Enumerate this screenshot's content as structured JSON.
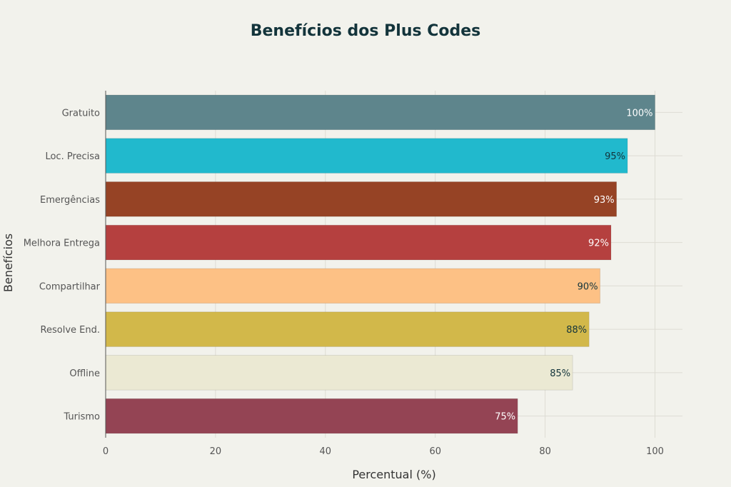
{
  "chart_data": {
    "type": "bar",
    "orientation": "horizontal",
    "title": "Benefícios dos Plus Codes",
    "xlabel": "Percentual (%)",
    "ylabel": "Benefícios",
    "xlim": [
      0,
      105
    ],
    "xticks": [
      0,
      20,
      40,
      60,
      80,
      100
    ],
    "grid": true,
    "categories": [
      "Gratuito",
      "Loc. Precisa",
      "Emergências",
      "Melhora Entrega",
      "Compartilhar",
      "Resolve End.",
      "Offline",
      "Turismo"
    ],
    "values": [
      100,
      95,
      93,
      92,
      90,
      88,
      85,
      75
    ],
    "data_labels": [
      "100%",
      "95%",
      "93%",
      "92%",
      "90%",
      "88%",
      "85%",
      "75%"
    ],
    "colors": [
      "#5e858c",
      "#21b9cd",
      "#964325",
      "#b5403f",
      "#fdc185",
      "#d2b84a",
      "#ebe9d3",
      "#944454"
    ],
    "label_colors": [
      "#ffffff",
      "#13343b",
      "#ffffff",
      "#ffffff",
      "#13343b",
      "#13343b",
      "#13343b",
      "#ffffff"
    ]
  }
}
